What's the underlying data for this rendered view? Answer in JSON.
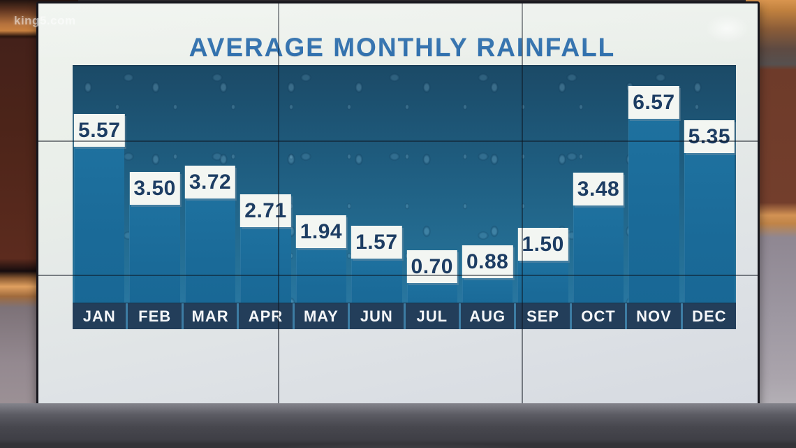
{
  "watermark": {
    "text": "king5.com"
  },
  "chart_data": {
    "type": "bar",
    "title": "AVERAGE MONTHLY RAINFALL",
    "categories": [
      "JAN",
      "FEB",
      "MAR",
      "APR",
      "MAY",
      "JUN",
      "JUL",
      "AUG",
      "SEP",
      "OCT",
      "NOV",
      "DEC"
    ],
    "values": [
      5.57,
      3.5,
      3.72,
      2.71,
      1.94,
      1.57,
      0.7,
      0.88,
      1.5,
      3.48,
      6.57,
      5.35
    ],
    "value_labels": [
      "5.57",
      "3.50",
      "3.72",
      "2.71",
      "1.94",
      "1.57",
      "0.70",
      "0.88",
      "1.50",
      "3.48",
      "6.57",
      "5.35"
    ],
    "xlabel": "",
    "ylabel": "",
    "ylim": [
      0,
      7.5
    ],
    "grid": false,
    "legend": false,
    "layout_hints": {
      "value_labels_position": "boxes above bar tops",
      "x_axis_style": "navy month band below bars",
      "plot_background": "dark blue rain-droplet texture"
    },
    "colors": {
      "title_text": "#2a6cab",
      "bar_fill": "#1a6a98",
      "plot_bg_top": "#1b4a67",
      "plot_bg_bottom": "#2a7aa6",
      "value_box_bg": "#f3f6f2",
      "value_text": "#1d3d63",
      "month_band_bg": "#233e5a",
      "month_text": "#f4f6f8",
      "screen_bg": "#e9eee9"
    }
  }
}
